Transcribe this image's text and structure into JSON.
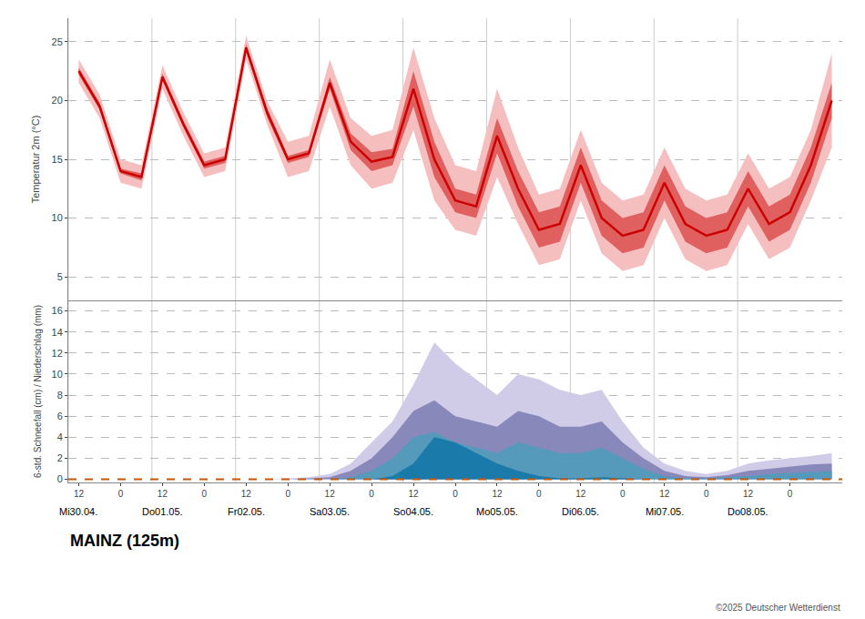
{
  "chart_data": [
    {
      "type": "line",
      "ylabel": "Temperatur 2m (°C)",
      "ylim": [
        3.0,
        27.0
      ],
      "yticks": [
        5,
        10,
        15,
        20,
        25
      ],
      "grid": true,
      "tick_labels": "y",
      "categories": [
        "12",
        null,
        "0",
        null,
        "12",
        null,
        "0",
        null,
        "12",
        null,
        "0",
        null,
        "12",
        null,
        "0",
        null,
        "12",
        null,
        "0",
        null,
        "12",
        null,
        "0",
        null,
        "12",
        null,
        "0",
        null,
        "12",
        null,
        "0",
        null,
        "12",
        null,
        "0",
        null,
        null
      ],
      "series": [
        {
          "type": "band",
          "color": "#f5bfbf",
          "lower": [
            21.5,
            18.5,
            13.0,
            12.5,
            21.0,
            17.0,
            13.5,
            14.0,
            23.5,
            18.0,
            13.5,
            14.0,
            19.5,
            14.5,
            12.5,
            13.0,
            17.5,
            11.5,
            9.0,
            8.5,
            13.5,
            9.5,
            6.0,
            6.5,
            11.5,
            7.0,
            5.5,
            6.0,
            10.0,
            6.5,
            5.5,
            6.0,
            9.5,
            6.5,
            7.5,
            11.5,
            16.0
          ],
          "upper": [
            23.5,
            20.5,
            15.0,
            14.5,
            23.0,
            19.0,
            15.5,
            16.0,
            25.5,
            20.0,
            16.5,
            17.0,
            23.5,
            18.5,
            17.0,
            17.5,
            24.5,
            18.5,
            14.5,
            14.0,
            21.0,
            16.0,
            12.0,
            12.5,
            17.5,
            13.0,
            11.5,
            12.0,
            16.0,
            12.5,
            11.5,
            12.0,
            15.5,
            12.5,
            13.5,
            17.5,
            24.0
          ]
        },
        {
          "type": "band",
          "color": "#e06060",
          "lower": [
            22.2,
            19.2,
            13.8,
            13.2,
            21.7,
            17.7,
            14.2,
            14.7,
            24.2,
            18.6,
            14.7,
            15.2,
            21.0,
            15.8,
            14.0,
            14.5,
            19.5,
            13.5,
            10.5,
            10.0,
            15.5,
            11.0,
            7.5,
            8.0,
            13.0,
            8.5,
            7.0,
            7.5,
            11.5,
            8.0,
            7.0,
            7.5,
            11.0,
            8.0,
            9.0,
            13.0,
            18.5
          ],
          "upper": [
            22.8,
            19.8,
            14.2,
            13.8,
            22.3,
            18.3,
            14.8,
            15.3,
            24.8,
            19.4,
            15.3,
            15.8,
            22.0,
            17.2,
            15.6,
            15.9,
            22.5,
            16.5,
            12.5,
            12.0,
            18.5,
            14.0,
            10.5,
            11.0,
            16.0,
            11.5,
            10.0,
            10.5,
            14.5,
            11.0,
            10.0,
            10.5,
            14.0,
            11.0,
            12.0,
            16.0,
            21.5
          ]
        },
        {
          "type": "line",
          "color": "#cc0000",
          "values": [
            22.5,
            19.5,
            14.0,
            13.5,
            22.0,
            18.0,
            14.5,
            15.0,
            24.5,
            19.0,
            15.0,
            15.5,
            21.5,
            16.5,
            14.8,
            15.2,
            21.0,
            15.0,
            11.5,
            11.0,
            17.0,
            12.5,
            9.0,
            9.5,
            14.5,
            10.0,
            8.5,
            9.0,
            13.0,
            9.5,
            8.5,
            9.0,
            12.5,
            9.5,
            10.5,
            14.5,
            20.0
          ]
        }
      ]
    },
    {
      "type": "area",
      "title": "MAINZ (125m)",
      "ylabel": "6-std. Schneefall (cm) / Niederschlag (mm)",
      "ylim": [
        -0.3,
        17.0
      ],
      "yticks": [
        0,
        2,
        4,
        6,
        8,
        10,
        12,
        14,
        16
      ],
      "grid": true,
      "categories": [
        "12",
        null,
        "0",
        null,
        "12",
        null,
        "0",
        null,
        "12",
        null,
        "0",
        null,
        "12",
        null,
        "0",
        null,
        "12",
        null,
        "0",
        null,
        "12",
        null,
        "0",
        null,
        "12",
        null,
        "0",
        null,
        "12",
        null,
        "0",
        null,
        "12",
        null,
        "0",
        null,
        null
      ],
      "series": [
        {
          "color": "#d0cce8",
          "values": [
            0.0,
            0.0,
            0.0,
            0.0,
            0.0,
            0.0,
            0.0,
            0.0,
            0.0,
            0.0,
            0.1,
            0.2,
            0.5,
            1.5,
            3.5,
            5.5,
            9.0,
            13.0,
            11.0,
            9.5,
            8.0,
            10.0,
            9.5,
            8.5,
            8.0,
            8.5,
            5.5,
            3.0,
            1.5,
            0.8,
            0.5,
            0.8,
            1.5,
            1.8,
            2.0,
            2.2,
            2.5
          ]
        },
        {
          "color": "#8888bb",
          "values": [
            0.0,
            0.0,
            0.0,
            0.0,
            0.0,
            0.0,
            0.0,
            0.0,
            0.0,
            0.0,
            0.0,
            0.1,
            0.2,
            0.8,
            2.0,
            4.0,
            6.5,
            7.5,
            6.0,
            5.5,
            5.0,
            6.5,
            6.0,
            5.0,
            5.0,
            5.5,
            3.5,
            2.0,
            0.8,
            0.3,
            0.2,
            0.4,
            0.8,
            1.0,
            1.2,
            1.4,
            1.5
          ]
        },
        {
          "color": "#5599bb",
          "values": [
            0.0,
            0.0,
            0.0,
            0.0,
            0.0,
            0.0,
            0.0,
            0.0,
            0.0,
            0.0,
            0.0,
            0.0,
            0.0,
            0.2,
            0.8,
            2.0,
            4.0,
            4.5,
            3.5,
            3.0,
            2.5,
            3.5,
            3.0,
            2.5,
            2.5,
            3.0,
            2.0,
            1.0,
            0.3,
            0.1,
            0.1,
            0.2,
            0.3,
            0.5,
            0.6,
            0.7,
            0.8
          ]
        },
        {
          "color": "#1a7aaa",
          "values": [
            0.0,
            0.0,
            0.0,
            0.0,
            0.0,
            0.0,
            0.0,
            0.0,
            0.0,
            0.0,
            0.0,
            0.0,
            0.0,
            0.0,
            0.0,
            0.3,
            1.5,
            4.0,
            3.5,
            2.5,
            1.5,
            0.8,
            0.3,
            0.1,
            0.1,
            0.2,
            0.1,
            0.0,
            0.0,
            0.0,
            0.0,
            0.0,
            0.0,
            0.0,
            0.0,
            0.0,
            0.0
          ]
        }
      ],
      "reference_lines": [
        {
          "y": 0,
          "color": "#cc5500",
          "line_style": "dashed"
        }
      ],
      "annotations": [
        {
          "x": 0,
          "text": "Mi30.04."
        },
        {
          "x": 4,
          "text": "Do01.05."
        },
        {
          "x": 8,
          "text": "Fr02.05."
        },
        {
          "x": 12,
          "text": "Sa03.05."
        },
        {
          "x": 16,
          "text": "So04.05."
        },
        {
          "x": 20,
          "text": "Mo05.05."
        },
        {
          "x": 24,
          "text": "Di06.05."
        },
        {
          "x": 28,
          "text": "Mi07.05."
        },
        {
          "x": 32,
          "text": "Do08.05."
        },
        {
          "text": "©2025 Deutscher Wetterdienst"
        }
      ]
    }
  ]
}
